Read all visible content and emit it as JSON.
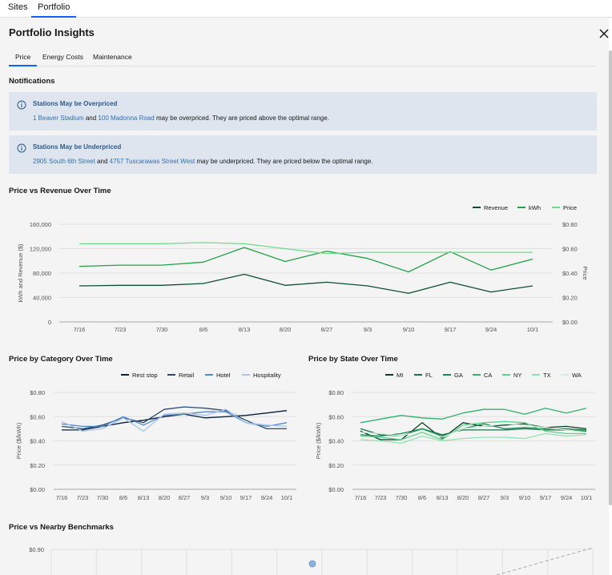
{
  "top_tabs": [
    {
      "label": "Sites",
      "active": false
    },
    {
      "label": "Portfolio",
      "active": true
    }
  ],
  "panel": {
    "title": "Portfolio Insights",
    "close_icon": "close-icon",
    "tabs": [
      {
        "label": "Price",
        "active": true
      },
      {
        "label": "Energy Costs",
        "active": false
      },
      {
        "label": "Maintenance",
        "active": false
      }
    ]
  },
  "notifications": {
    "heading": "Notifications",
    "items": [
      {
        "icon": "info-icon",
        "title": "Stations May be Overpriced",
        "link1": "1 Beaver Stadium",
        "and": "and",
        "link2": "100 Madonna Road",
        "rest": "may be overpriced. They are priced above the optimal range."
      },
      {
        "icon": "info-icon",
        "title": "Stations May be Underpriced",
        "link1": "2905 South 6th Street",
        "and": "and",
        "link2": "4757 Tuscarawas Street West",
        "rest": "may be underpriced. They are priced below the optimal range."
      }
    ]
  },
  "colors": {
    "dark_green": "#0e4d2f",
    "mid_green": "#24a148",
    "light_green": "#6fdc8c",
    "navy": "#0b1f3a",
    "slate": "#2b4a6b",
    "blue": "#4f88c6",
    "pale_blue": "#a9c4e8",
    "link": "#2f6fb5"
  },
  "chart_data": [
    {
      "type": "line",
      "title": "Price vs Revenue Over Time",
      "categories": [
        "7/16",
        "7/23",
        "7/30",
        "8/6",
        "8/13",
        "8/20",
        "8/27",
        "9/3",
        "9/10",
        "9/17",
        "9/24",
        "10/1"
      ],
      "ylabel": "kWh and Revenue ($)",
      "ylim": [
        0,
        160000
      ],
      "yticks": [
        "0",
        "40,000",
        "80,000",
        "120,000",
        "160,000"
      ],
      "y2label": "Price",
      "y2lim": [
        0,
        0.8
      ],
      "y2ticks": [
        "$0.00",
        "$0.20",
        "$0.40",
        "$0.60",
        "$0.80"
      ],
      "legend": [
        "Revenue",
        "kWh",
        "Price"
      ],
      "series": [
        {
          "name": "Revenue",
          "axis": "left",
          "color": "#0e4d2f",
          "values": [
            59000,
            60000,
            60000,
            63000,
            78000,
            60000,
            65000,
            59000,
            47000,
            65000,
            49000,
            59000
          ]
        },
        {
          "name": "kWh",
          "axis": "left",
          "color": "#24a148",
          "values": [
            91000,
            93000,
            93000,
            98000,
            122000,
            99000,
            116000,
            104000,
            82000,
            115000,
            85000,
            103000
          ]
        },
        {
          "name": "Price",
          "axis": "right",
          "color": "#6fdc8c",
          "values": [
            0.64,
            0.64,
            0.64,
            0.65,
            0.64,
            0.6,
            0.56,
            0.57,
            0.57,
            0.57,
            0.57,
            0.57
          ]
        }
      ]
    },
    {
      "type": "line",
      "title": "Price by Category Over Time",
      "categories": [
        "7/16",
        "7/23",
        "7/30",
        "8/6",
        "8/13",
        "8/20",
        "8/27",
        "9/3",
        "9/10",
        "9/17",
        "9/24",
        "10/1"
      ],
      "ylabel": "Price ($/kWh)",
      "ylim": [
        0,
        0.8
      ],
      "yticks": [
        "$0.00",
        "$0.20",
        "$0.40",
        "$0.60",
        "$0.80"
      ],
      "legend": [
        "Rest stop",
        "Retail",
        "Hotel",
        "Hospitality"
      ],
      "series": [
        {
          "name": "Rest stop",
          "color": "#0b1f3a",
          "values": [
            0.49,
            0.49,
            0.52,
            0.55,
            0.57,
            0.6,
            0.62,
            0.59,
            0.6,
            0.61,
            0.63,
            0.65
          ]
        },
        {
          "name": "Retail",
          "color": "#2b4a6b",
          "values": [
            0.52,
            0.5,
            0.53,
            0.59,
            0.55,
            0.66,
            0.68,
            0.67,
            0.65,
            0.57,
            0.5,
            0.5
          ]
        },
        {
          "name": "Hotel",
          "color": "#4f88c6",
          "values": [
            0.54,
            0.52,
            0.52,
            0.6,
            0.53,
            0.61,
            0.62,
            0.64,
            0.64,
            0.55,
            0.52,
            0.55
          ]
        },
        {
          "name": "Hospitality",
          "color": "#a9c4e8",
          "values": [
            0.56,
            0.48,
            0.5,
            0.59,
            0.48,
            0.62,
            0.63,
            0.61,
            0.66,
            0.55,
            0.53,
            0.52
          ]
        }
      ]
    },
    {
      "type": "line",
      "title": "Price by State Over Time",
      "categories": [
        "7/16",
        "7/23",
        "7/30",
        "8/6",
        "8/13",
        "8/20",
        "8/27",
        "9/3",
        "9/10",
        "9/17",
        "9/24",
        "10/1"
      ],
      "ylabel": "Price ($/kWh)",
      "ylim": [
        0,
        0.8
      ],
      "yticks": [
        "$0.00",
        "$0.20",
        "$0.40",
        "$0.60",
        "$0.80"
      ],
      "legend": [
        "MI",
        "FL",
        "GA",
        "CA",
        "NY",
        "TX",
        "WA"
      ],
      "series": [
        {
          "name": "MI",
          "color": "#0b3d24",
          "values": [
            0.48,
            0.41,
            0.41,
            0.55,
            0.42,
            0.55,
            0.52,
            0.53,
            0.54,
            0.51,
            0.52,
            0.5
          ]
        },
        {
          "name": "FL",
          "color": "#1f6f4a",
          "values": [
            0.5,
            0.45,
            0.44,
            0.5,
            0.45,
            0.49,
            0.49,
            0.49,
            0.5,
            0.49,
            0.49,
            0.48
          ]
        },
        {
          "name": "GA",
          "color": "#198754",
          "values": [
            0.45,
            0.44,
            0.46,
            0.5,
            0.44,
            0.5,
            0.54,
            0.5,
            0.51,
            0.5,
            0.5,
            0.49
          ]
        },
        {
          "name": "CA",
          "color": "#2fb36b",
          "values": [
            0.55,
            0.58,
            0.61,
            0.59,
            0.58,
            0.63,
            0.66,
            0.66,
            0.62,
            0.67,
            0.63,
            0.67
          ]
        },
        {
          "name": "NY",
          "color": "#5fd18a",
          "values": [
            0.44,
            0.43,
            0.41,
            0.47,
            0.41,
            0.53,
            0.55,
            0.56,
            0.55,
            0.48,
            0.46,
            0.46
          ]
        },
        {
          "name": "TX",
          "color": "#8fe3ad",
          "values": [
            0.41,
            0.4,
            0.38,
            0.44,
            0.4,
            0.42,
            0.43,
            0.43,
            0.42,
            0.46,
            0.44,
            0.45
          ]
        },
        {
          "name": "WA",
          "color": "#cfeed9",
          "values": [
            0.47,
            0.46,
            0.44,
            0.49,
            0.43,
            0.5,
            0.52,
            0.54,
            0.53,
            0.51,
            0.49,
            0.47
          ]
        }
      ]
    },
    {
      "type": "scatter",
      "title": "Price vs Nearby Benchmarks",
      "yticks": [
        "$0.90"
      ]
    }
  ]
}
